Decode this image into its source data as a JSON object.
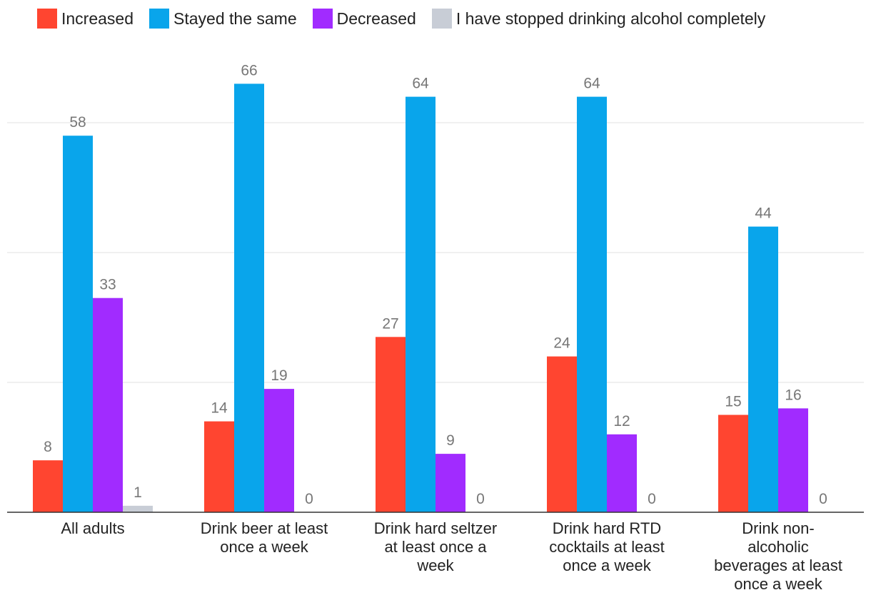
{
  "chart_data": {
    "type": "bar",
    "title": "",
    "xlabel": "",
    "ylabel": "",
    "ylim": [
      0,
      75
    ],
    "gridlines": [
      0,
      20,
      40,
      60
    ],
    "legend_position": "top",
    "categories": [
      "All adults",
      "Drink beer at least once a week",
      "Drink hard seltzer at least once a week",
      "Drink hard RTD cocktails at least once a week",
      "Drink non-alcoholic beverages at least once a week"
    ],
    "category_lines": [
      [
        "All adults"
      ],
      [
        "Drink beer at least",
        "once a week"
      ],
      [
        "Drink hard seltzer",
        "at least once a",
        "week"
      ],
      [
        "Drink hard RTD",
        "cocktails at least",
        "once a week"
      ],
      [
        "Drink non-",
        "alcoholic",
        "beverages at least",
        "once a week"
      ]
    ],
    "series": [
      {
        "name": "Increased",
        "color": "#ff4530",
        "values": [
          8,
          14,
          27,
          24,
          15
        ]
      },
      {
        "name": "Stayed the same",
        "color": "#09a5eb",
        "values": [
          58,
          66,
          64,
          64,
          44
        ]
      },
      {
        "name": "Decreased",
        "color": "#a12bff",
        "values": [
          33,
          19,
          9,
          12,
          16
        ]
      },
      {
        "name": "I have stopped drinking alcohol completely",
        "color": "#c8cdd6",
        "values": [
          1,
          0,
          0,
          0,
          0
        ]
      }
    ]
  }
}
